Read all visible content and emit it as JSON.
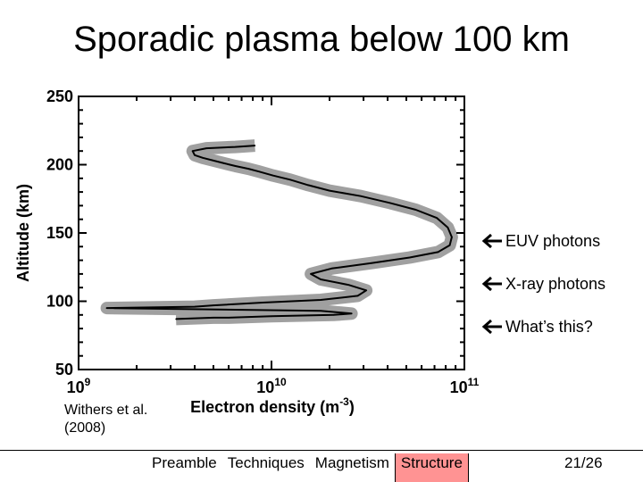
{
  "title": "Sporadic plasma below 100 km",
  "citation": {
    "line1": "Withers et al.",
    "line2": "(2008)"
  },
  "chart_data": {
    "type": "line",
    "xscale": "log",
    "xlim": [
      1000000000,
      100000000000
    ],
    "ylim": [
      50,
      250
    ],
    "ylabel": "Altitude (km)",
    "xlabel_base": "Electron density (m",
    "xlabel_exp": "-3",
    "xlabel_close": ")",
    "yticks": [
      {
        "value": 50,
        "label": "50"
      },
      {
        "value": 100,
        "label": "100"
      },
      {
        "value": 150,
        "label": "150"
      },
      {
        "value": 200,
        "label": "200"
      },
      {
        "value": 250,
        "label": "250"
      }
    ],
    "xticks": [
      {
        "value": 1000000000,
        "base": "10",
        "exp": "9"
      },
      {
        "value": 10000000000,
        "base": "10",
        "exp": "10"
      },
      {
        "value": 100000000000,
        "base": "10",
        "exp": "11"
      }
    ],
    "series": [
      {
        "name": "electron density profile",
        "density": [
          8200000000.0,
          6500000000.0,
          4600000000.0,
          3900000000.0,
          4000000000.0,
          4400000000.0,
          5000000000.0,
          5700000000.0,
          6500000000.0,
          7600000000.0,
          8600000000.0,
          10200000000.0,
          12500000000.0,
          15500000000.0,
          20000000000.0,
          29000000000.0,
          41000000000.0,
          56000000000.0,
          72000000000.0,
          82000000000.0,
          86000000000.0,
          84000000000.0,
          73000000000.0,
          52000000000.0,
          33000000000.0,
          20500000000.0,
          16000000000.0,
          18000000000.0,
          25000000000.0,
          31000000000.0,
          28000000000.0,
          18000000000.0,
          9000000000.0,
          5000000000.0,
          4000000000.0,
          1400000000.0,
          18000000000.0,
          26000000000.0,
          21000000000.0,
          10000000000.0,
          6000000000.0,
          5000000000.0,
          3200000000.0
        ],
        "altitude": [
          214,
          213,
          212,
          210,
          207,
          205,
          203,
          201,
          199,
          197,
          195,
          192,
          189,
          185,
          181,
          177,
          172,
          167,
          161,
          154,
          147,
          141,
          136,
          132,
          128,
          124,
          120,
          116,
          112,
          108,
          104,
          101,
          99,
          97,
          96,
          95,
          93,
          91,
          90,
          89,
          88,
          88,
          87
        ]
      }
    ],
    "annotations": [
      {
        "label": "EUV photons",
        "altitude": 143
      },
      {
        "label": "X-ray photons",
        "altitude": 112
      },
      {
        "label": "What’s this?",
        "altitude": 81
      }
    ]
  },
  "footer": {
    "nav": [
      "Preamble",
      "Techniques",
      "Magnetism",
      "Structure"
    ],
    "active": "Structure",
    "page": "21/26"
  }
}
